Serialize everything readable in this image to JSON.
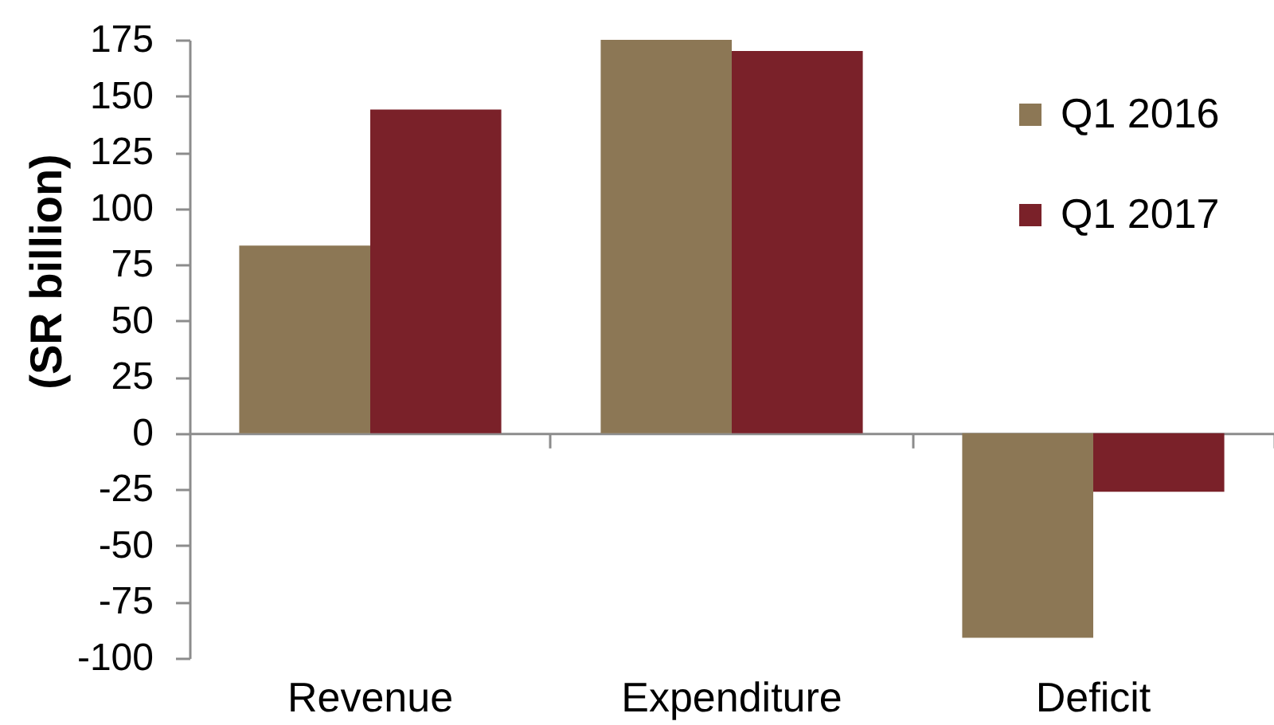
{
  "chart_data": {
    "type": "bar",
    "categories": [
      "Revenue",
      "Expenditure",
      "Deficit"
    ],
    "series": [
      {
        "name": "Q1 2016",
        "color": "#8c7755",
        "values": [
          83.5,
          175,
          -91
        ]
      },
      {
        "name": "Q1 2017",
        "color": "#7a2129",
        "values": [
          144,
          170,
          -26
        ]
      }
    ],
    "ylabel": "(SR billion)",
    "ylim": [
      -100,
      175
    ],
    "yticks": [
      -100,
      -75,
      -50,
      -25,
      0,
      25,
      50,
      75,
      100,
      125,
      150,
      175
    ],
    "legend": "top right"
  }
}
